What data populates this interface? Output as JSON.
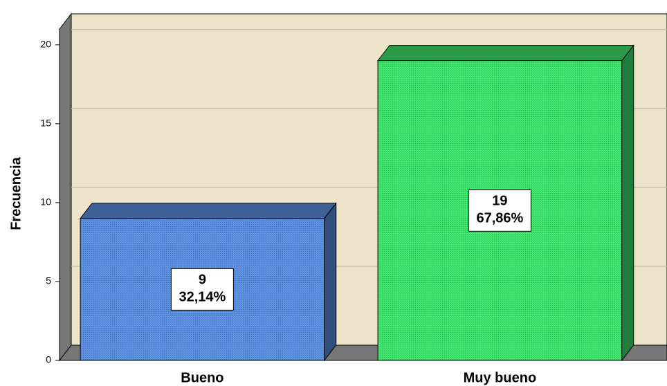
{
  "chart_data": {
    "type": "bar3d",
    "y_axis_label": "Frecuencia",
    "categories": [
      "Bueno",
      "Muy bueno"
    ],
    "values": [
      9,
      19
    ],
    "percent_values": [
      32.14,
      67.86
    ],
    "percent_labels": [
      "32,14%",
      "67,86%"
    ],
    "colors": [
      "#5b8fe0",
      "#3fe46d"
    ],
    "ylim": [
      0,
      21
    ],
    "yticks": [
      0,
      5,
      10,
      15,
      20
    ],
    "grid": true
  }
}
